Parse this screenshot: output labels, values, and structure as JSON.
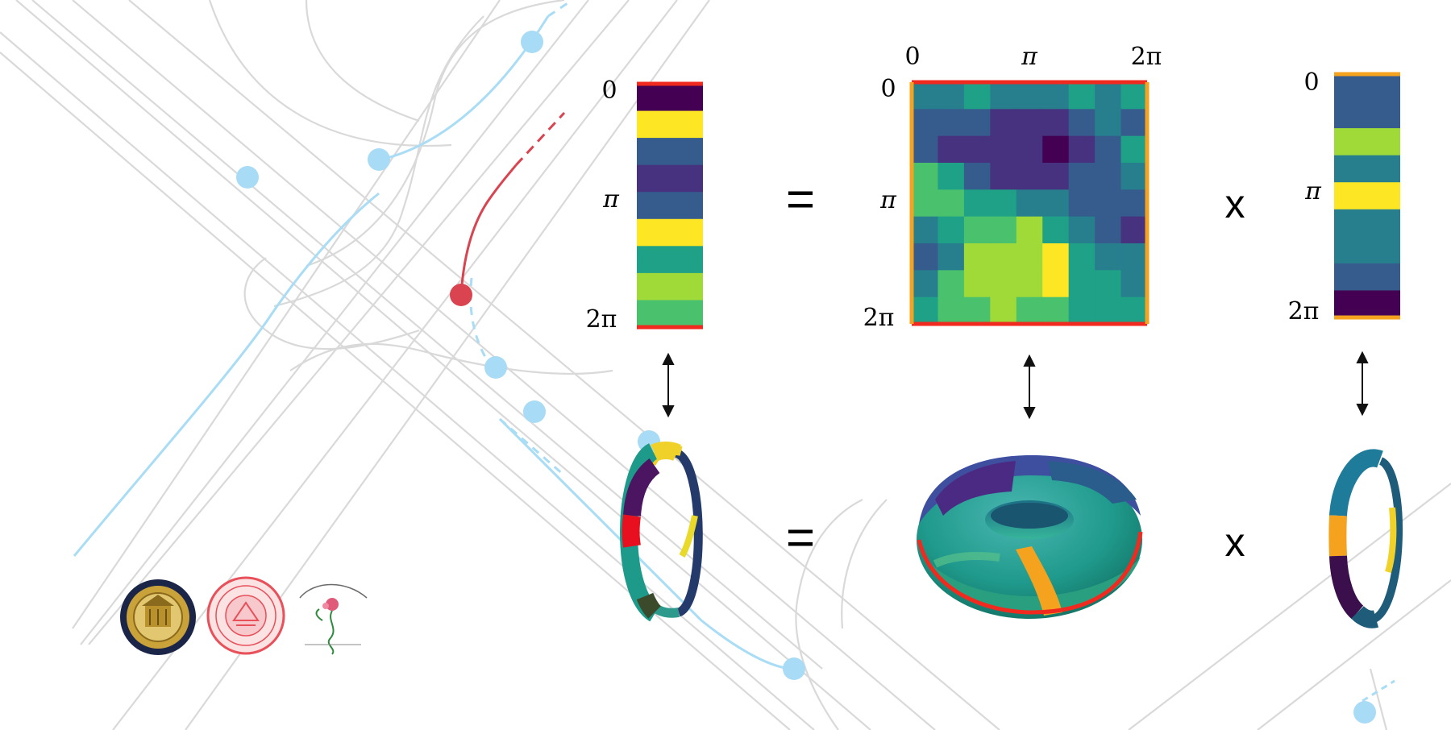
{
  "theme": {
    "road_color": "#d7d7d7",
    "trajectory_blue": "#a9dcf5",
    "agent_blue": "#a8dbf5",
    "ego_red": "#d94450",
    "frame_red": "#f02a1e",
    "frame_orange": "#f5a21e"
  },
  "labels": {
    "equals": "=",
    "times": "x",
    "zero": "0",
    "pi": "π",
    "two_pi": "2π"
  },
  "palette": [
    "#440154",
    "#46327e",
    "#365c8d",
    "#277f8e",
    "#1fa187",
    "#4ac16d",
    "#a0da39",
    "#fde725"
  ],
  "left_vector": {
    "values": [
      0,
      7,
      2,
      1,
      2,
      7,
      4,
      6,
      5
    ]
  },
  "matrix": {
    "rows": [
      [
        3,
        3,
        4,
        3,
        3,
        3,
        4,
        3,
        4
      ],
      [
        2,
        2,
        2,
        1,
        1,
        1,
        2,
        3,
        2
      ],
      [
        2,
        1,
        1,
        1,
        1,
        0,
        1,
        2,
        4
      ],
      [
        5,
        4,
        2,
        1,
        1,
        1,
        2,
        2,
        3
      ],
      [
        5,
        5,
        4,
        4,
        3,
        3,
        2,
        2,
        2
      ],
      [
        3,
        4,
        5,
        5,
        6,
        4,
        3,
        2,
        1
      ],
      [
        2,
        3,
        6,
        6,
        6,
        7,
        4,
        3,
        3
      ],
      [
        3,
        5,
        6,
        6,
        6,
        7,
        4,
        4,
        3
      ],
      [
        4,
        5,
        5,
        6,
        5,
        5,
        4,
        4,
        4
      ]
    ]
  },
  "right_vector": {
    "values": [
      2,
      2,
      6,
      3,
      7,
      3,
      3,
      2,
      0
    ]
  }
}
